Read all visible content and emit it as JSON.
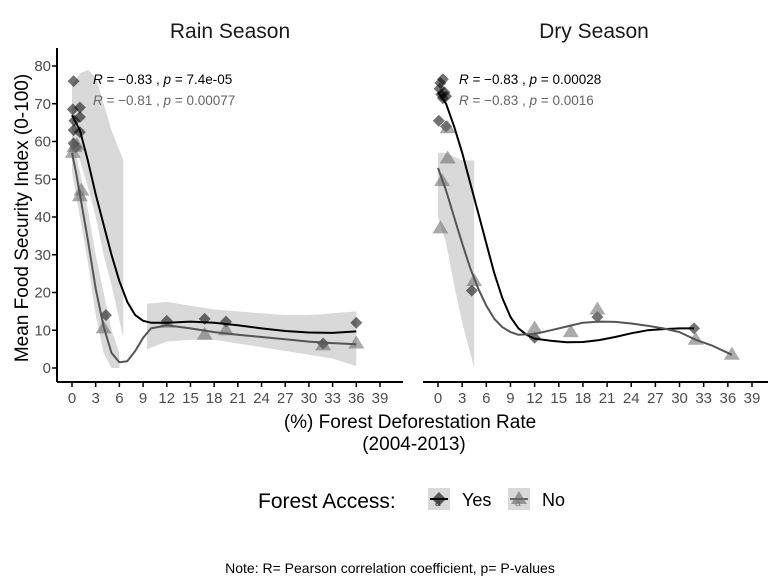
{
  "chart_data": {
    "type": "scatter",
    "title": "",
    "ylabel": "Mean Food Security Index (0-100)",
    "xlabel_lines": [
      "(%) Forest Deforestation Rate",
      "(2004-2013)"
    ],
    "xlim": [
      -1.5,
      42
    ],
    "ylim": [
      -3,
      84
    ],
    "x_ticks": [
      0,
      3,
      6,
      9,
      12,
      15,
      18,
      21,
      24,
      27,
      30,
      33,
      36,
      39
    ],
    "y_ticks": [
      0,
      10,
      20,
      30,
      40,
      50,
      60,
      70,
      80
    ],
    "grid": false,
    "legend": {
      "position": "bottom",
      "title": "Forest Access:",
      "entries": [
        {
          "label": "Yes",
          "shape": "diamond",
          "color": "#000000"
        },
        {
          "label": "No",
          "shape": "triangle",
          "color": "#666666"
        }
      ]
    },
    "note": "Note: R= Pearson correlation coefficient, p= P-values",
    "panels": [
      {
        "title": "Rain Season",
        "stats": [
          {
            "series": "Yes",
            "text_R": "R",
            "text_eq": " = −0.83 , ",
            "text_p": "p",
            "text_val": " = 7.4e-05",
            "color": "#000000"
          },
          {
            "series": "No",
            "text_R": "R",
            "text_eq": " = −0.81 , ",
            "text_p": "p",
            "text_val": " = 0.00077",
            "color": "#666666"
          }
        ],
        "series": [
          {
            "name": "Yes",
            "points": [
              [
                0.2,
                76
              ],
              [
                0.1,
                68.5
              ],
              [
                0.3,
                65.5
              ],
              [
                1.0,
                69
              ],
              [
                1.0,
                66.5
              ],
              [
                0.2,
                63
              ],
              [
                1.0,
                62.5
              ],
              [
                0.2,
                59.5
              ],
              [
                0.5,
                58.5
              ],
              [
                4.3,
                14
              ],
              [
                12,
                12.5
              ],
              [
                16.8,
                13
              ],
              [
                19.5,
                12.3
              ],
              [
                31.8,
                6.5
              ],
              [
                36,
                12
              ]
            ],
            "fit": [
              [
                0,
                67
              ],
              [
                1,
                63
              ],
              [
                2,
                55
              ],
              [
                3,
                46
              ],
              [
                4,
                38
              ],
              [
                5,
                30
              ],
              [
                6,
                23
              ],
              [
                7,
                17.5
              ],
              [
                8,
                14
              ],
              [
                9,
                12.5
              ],
              [
                10,
                12
              ],
              [
                12,
                12
              ],
              [
                15,
                12.3
              ],
              [
                18,
                12
              ],
              [
                21,
                11.3
              ],
              [
                24,
                10.5
              ],
              [
                27,
                9.8
              ],
              [
                30,
                9.4
              ],
              [
                33,
                9.3
              ],
              [
                36,
                9.7
              ]
            ],
            "band": [
              [
                0,
                60,
                75
              ],
              [
                1,
                55,
                78
              ],
              [
                2,
                48,
                79
              ],
              [
                3,
                40,
                77
              ],
              [
                4,
                30,
                70
              ],
              [
                5,
                22,
                63
              ],
              [
                6.5,
                8,
                55
              ]
            ],
            "band2": [
              [
                9.5,
                5,
                17
              ],
              [
                12,
                7,
                17.5
              ],
              [
                15,
                7.5,
                16.5
              ],
              [
                18,
                7.5,
                15.5
              ],
              [
                21,
                6.5,
                15
              ],
              [
                24,
                5.5,
                14.5
              ],
              [
                27,
                4.5,
                14
              ],
              [
                30,
                3.5,
                14
              ],
              [
                33,
                2.5,
                14.5
              ],
              [
                36,
                0.5,
                15
              ]
            ]
          },
          {
            "name": "No",
            "points": [
              [
                0.1,
                57
              ],
              [
                0.3,
                58.5
              ],
              [
                0.6,
                59
              ],
              [
                1.2,
                47
              ],
              [
                1.0,
                45.5
              ],
              [
                4.0,
                10.5
              ],
              [
                12,
                12
              ],
              [
                16.8,
                8.8
              ],
              [
                19.5,
                10
              ],
              [
                31.8,
                6
              ],
              [
                36,
                6.5
              ]
            ],
            "fit": [
              [
                0,
                57
              ],
              [
                0.5,
                52
              ],
              [
                1,
                46
              ],
              [
                2,
                34
              ],
              [
                3,
                21
              ],
              [
                4,
                11
              ],
              [
                5,
                4
              ],
              [
                6,
                1.5
              ],
              [
                7,
                1.8
              ],
              [
                8,
                4.5
              ],
              [
                9,
                8
              ],
              [
                10,
                10.5
              ],
              [
                12,
                11.3
              ],
              [
                15,
                10.5
              ],
              [
                18,
                9.5
              ],
              [
                21,
                8.8
              ],
              [
                24,
                8.2
              ],
              [
                27,
                7.6
              ],
              [
                30,
                7
              ],
              [
                33,
                6.6
              ],
              [
                36,
                6.3
              ]
            ],
            "band": [
              [
                0,
                52,
                62
              ],
              [
                1,
                40,
                52
              ],
              [
                2,
                28,
                42
              ],
              [
                3,
                14,
                30
              ],
              [
                4,
                4,
                20
              ],
              [
                5,
                0,
                10
              ],
              [
                6,
                0,
                4
              ]
            ]
          }
        ]
      },
      {
        "title": "Dry Season",
        "stats": [
          {
            "series": "Yes",
            "text_R": "R",
            "text_eq": " = −0.83 , ",
            "text_p": "p",
            "text_val": " = 0.00028",
            "color": "#000000"
          },
          {
            "series": "No",
            "text_R": "R",
            "text_eq": " = −0.83 , ",
            "text_p": "p",
            "text_val": " = 0.0016",
            "color": "#666666"
          }
        ],
        "series": [
          {
            "name": "Yes",
            "points": [
              [
                0.3,
                75.5
              ],
              [
                0.6,
                76.5
              ],
              [
                0.2,
                74
              ],
              [
                0.8,
                73
              ],
              [
                0.4,
                72.5
              ],
              [
                1.0,
                72
              ],
              [
                0.6,
                71.5
              ],
              [
                0.1,
                65.5
              ],
              [
                1.0,
                64
              ],
              [
                4.2,
                20.5
              ],
              [
                12,
                8
              ],
              [
                19.8,
                13.5
              ],
              [
                31.8,
                10.5
              ]
            ],
            "fit": [
              [
                0,
                73
              ],
              [
                1,
                70
              ],
              [
                2,
                64
              ],
              [
                3,
                57
              ],
              [
                4,
                49
              ],
              [
                5,
                41
              ],
              [
                6,
                33
              ],
              [
                7,
                25
              ],
              [
                8,
                18.5
              ],
              [
                9,
                13.5
              ],
              [
                10,
                10.5
              ],
              [
                11,
                8.8
              ],
              [
                12,
                7.8
              ],
              [
                14,
                7.2
              ],
              [
                16,
                6.8
              ],
              [
                18,
                6.9
              ],
              [
                20,
                7.4
              ],
              [
                22,
                8.2
              ],
              [
                24,
                9.2
              ],
              [
                26,
                10
              ],
              [
                28,
                10.3
              ],
              [
                30,
                10.5
              ],
              [
                31.8,
                10.5
              ]
            ]
          },
          {
            "name": "No",
            "points": [
              [
                0.3,
                37
              ],
              [
                0.5,
                49.5
              ],
              [
                1.2,
                55.5
              ],
              [
                1.2,
                63.5
              ],
              [
                4.5,
                23
              ],
              [
                12,
                10.5
              ],
              [
                16.5,
                9.5
              ],
              [
                19.8,
                15.5
              ],
              [
                32,
                7.5
              ],
              [
                36.5,
                3.5
              ]
            ],
            "fit": [
              [
                0,
                53
              ],
              [
                1,
                47
              ],
              [
                2,
                40
              ],
              [
                3,
                33
              ],
              [
                4,
                26.5
              ],
              [
                5,
                21
              ],
              [
                6,
                16.5
              ],
              [
                7,
                13
              ],
              [
                8,
                10.8
              ],
              [
                9,
                9.5
              ],
              [
                10,
                8.8
              ],
              [
                12,
                9
              ],
              [
                14,
                10
              ],
              [
                16,
                11
              ],
              [
                18,
                12
              ],
              [
                20,
                12.3
              ],
              [
                22,
                12.2
              ],
              [
                24,
                11.8
              ],
              [
                26,
                11.2
              ],
              [
                28,
                10.5
              ],
              [
                30,
                9.5
              ],
              [
                32,
                7.5
              ],
              [
                34,
                6
              ],
              [
                36.5,
                3.5
              ]
            ],
            "band": [
              [
                0,
                40,
                57
              ],
              [
                1,
                33,
                57
              ],
              [
                2,
                22,
                56
              ],
              [
                3,
                12,
                55
              ],
              [
                4.5,
                0,
                55
              ]
            ]
          }
        ]
      }
    ]
  }
}
